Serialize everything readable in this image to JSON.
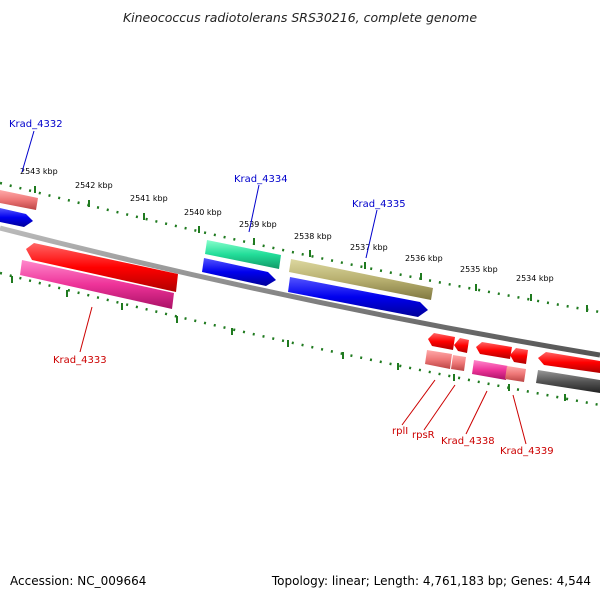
{
  "title": "Kineococcus radiotolerans SRS30216, complete genome",
  "footer": {
    "accession": "Accession: NC_009664",
    "summary": "Topology: linear; Length: 4,761,183 bp; Genes: 4,544"
  },
  "scale_ticks": [
    "2543 kbp",
    "2542 kbp",
    "2541 kbp",
    "2540 kbp",
    "2539 kbp",
    "2538 kbp",
    "2537 kbp",
    "2536 kbp",
    "2535 kbp",
    "2534 kbp"
  ],
  "gene_labels": {
    "krad_4332": "Krad_4332",
    "krad_4333": "Krad_4333",
    "krad_4334": "Krad_4334",
    "krad_4335": "Krad_4335",
    "rpli": "rplI",
    "rpsr": "rpsR",
    "krad_4338": "Krad_4338",
    "krad_4339": "Krad_4339"
  },
  "colors": {
    "backbone": "#888888",
    "scale_dots": "#1f7a1f",
    "gene_red": "#ff0000",
    "gene_pink": "#ee4499",
    "gene_light_red": "#ee7777",
    "gene_blue": "#0000ee",
    "gene_cyan": "#22dd99",
    "gene_olive": "#b8b070",
    "gene_gray": "#555555",
    "label_blue": "#0000cc",
    "label_red": "#cc0000"
  }
}
